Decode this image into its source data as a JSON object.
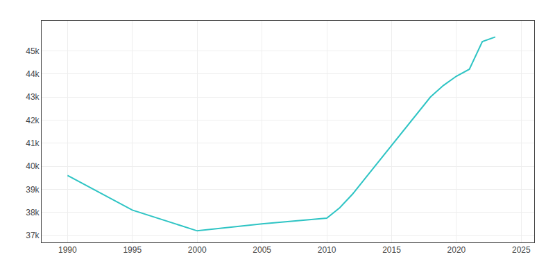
{
  "chart_data": {
    "type": "line",
    "x": [
      1990,
      1995,
      2000,
      2005,
      2010,
      2011,
      2012,
      2013,
      2014,
      2015,
      2016,
      2017,
      2018,
      2019,
      2020,
      2021,
      2022,
      2023
    ],
    "values": [
      39600,
      38100,
      37200,
      37500,
      37750,
      38200,
      38800,
      39500,
      40200,
      40900,
      41600,
      42300,
      43000,
      43500,
      43900,
      44200,
      45400,
      45600
    ],
    "color": "#2EC4C4",
    "xlim": [
      1988,
      2026
    ],
    "ylim": [
      36700,
      46300
    ],
    "xticks": [
      1990,
      1995,
      2000,
      2005,
      2010,
      2015,
      2020,
      2025
    ],
    "yticks": [
      {
        "value": 37000,
        "label": "37k"
      },
      {
        "value": 38000,
        "label": "38k"
      },
      {
        "value": 39000,
        "label": "39k"
      },
      {
        "value": 40000,
        "label": "40k"
      },
      {
        "value": 41000,
        "label": "41k"
      },
      {
        "value": 42000,
        "label": "42k"
      },
      {
        "value": 43000,
        "label": "43k"
      },
      {
        "value": 44000,
        "label": "44k"
      },
      {
        "value": 45000,
        "label": "45k"
      }
    ],
    "grid": true
  }
}
